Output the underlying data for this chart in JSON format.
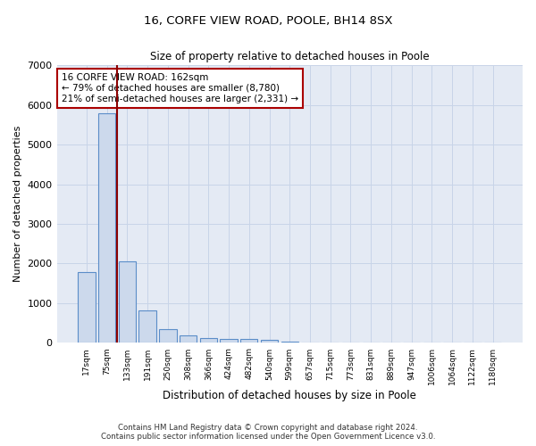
{
  "title_line1": "16, CORFE VIEW ROAD, POOLE, BH14 8SX",
  "title_line2": "Size of property relative to detached houses in Poole",
  "xlabel": "Distribution of detached houses by size in Poole",
  "ylabel": "Number of detached properties",
  "bar_color": "#ccd9ec",
  "bar_edge_color": "#5b8dc8",
  "grid_color": "#c8d4e8",
  "background_color": "#e4eaf4",
  "annotation_box_color": "#aa0000",
  "vline_color": "#8b0000",
  "vline_x_index": 1.5,
  "annotation_text": "16 CORFE VIEW ROAD: 162sqm\n← 79% of detached houses are smaller (8,780)\n21% of semi-detached houses are larger (2,331) →",
  "categories": [
    "17sqm",
    "75sqm",
    "133sqm",
    "191sqm",
    "250sqm",
    "308sqm",
    "366sqm",
    "424sqm",
    "482sqm",
    "540sqm",
    "599sqm",
    "657sqm",
    "715sqm",
    "773sqm",
    "831sqm",
    "889sqm",
    "947sqm",
    "1006sqm",
    "1064sqm",
    "1122sqm",
    "1180sqm"
  ],
  "values": [
    1780,
    5780,
    2060,
    820,
    340,
    190,
    130,
    110,
    100,
    70,
    40,
    0,
    0,
    0,
    0,
    0,
    0,
    0,
    0,
    0,
    0
  ],
  "ylim": [
    0,
    7000
  ],
  "yticks": [
    0,
    1000,
    2000,
    3000,
    4000,
    5000,
    6000,
    7000
  ],
  "footnote1": "Contains HM Land Registry data © Crown copyright and database right 2024.",
  "footnote2": "Contains public sector information licensed under the Open Government Licence v3.0."
}
